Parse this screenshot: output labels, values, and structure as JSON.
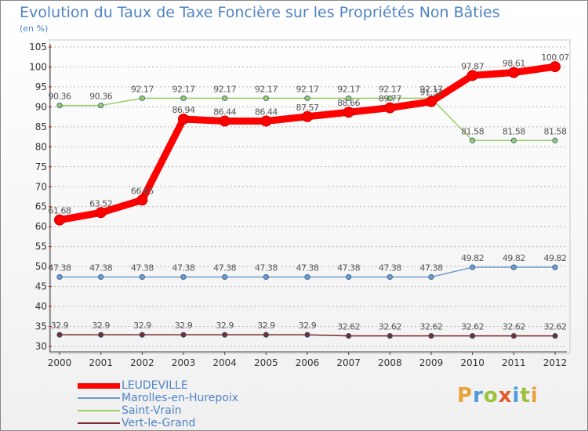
{
  "header": {
    "title": "Evolution du Taux de Taxe Foncière sur les Propriétés Non Bâties",
    "unit": "(en %)"
  },
  "logo": {
    "text": "Proxiti",
    "colors": [
      "#e8a33c",
      "#4f9be0",
      "#9bc23a",
      "#e25c2e",
      "#4f9be0",
      "#9bc23a",
      "#e8a33c"
    ]
  },
  "chart_data": {
    "type": "line",
    "title": "Evolution du Taux de Taxe Foncière sur les Propriétés Non Bâties",
    "ylabel": "(en %)",
    "ylim": [
      30,
      105
    ],
    "yticks": [
      30,
      35,
      40,
      45,
      50,
      55,
      60,
      65,
      70,
      75,
      80,
      85,
      90,
      95,
      100,
      105
    ],
    "x": [
      "2000",
      "2001",
      "2002",
      "2003",
      "2004",
      "2005",
      "2006",
      "2007",
      "2008",
      "2009",
      "2010",
      "2011",
      "2012"
    ],
    "grid": "horizontal dashed",
    "legend_position": "bottom-left",
    "series": [
      {
        "name": "LEUDEVILLE",
        "color": "#ff0000",
        "values": [
          61.68,
          63.52,
          66.65,
          86.94,
          86.44,
          86.44,
          87.57,
          88.66,
          89.77,
          91.32,
          97.87,
          98.61,
          100.07
        ],
        "labels": [
          "61.68",
          "63.52",
          "66.65",
          "86.94",
          "86.44",
          "86.44",
          "87.57",
          "88.66",
          "89.77",
          "91.32",
          "97.87",
          "98.61",
          "100.07"
        ]
      },
      {
        "name": "Marolles-en-Hurepoix",
        "color": "#6f9bcc",
        "values": [
          47.38,
          47.38,
          47.38,
          47.38,
          47.38,
          47.38,
          47.38,
          47.38,
          47.38,
          47.38,
          49.82,
          49.82,
          49.82
        ],
        "labels": [
          "47.38",
          "47.38",
          "47.38",
          "47.38",
          "47.38",
          "47.38",
          "47.38",
          "47.38",
          "47.38",
          "47.38",
          "49.82",
          "49.82",
          "49.82"
        ]
      },
      {
        "name": "Saint-Vrain",
        "color": "#99cc66",
        "values": [
          90.36,
          90.36,
          92.17,
          92.17,
          92.17,
          92.17,
          92.17,
          92.17,
          92.17,
          92.17,
          81.58,
          81.58,
          81.58
        ],
        "labels": [
          "90.36",
          "90.36",
          "92.17",
          "92.17",
          "92.17",
          "92.17",
          "92.17",
          "92.17",
          "92.17",
          "92.17",
          "81.58",
          "81.58",
          "81.58"
        ]
      },
      {
        "name": "Vert-le-Grand",
        "color": "#7a2b2b",
        "values": [
          32.9,
          32.9,
          32.9,
          32.9,
          32.9,
          32.9,
          32.9,
          32.62,
          32.62,
          32.62,
          32.62,
          32.62,
          32.62
        ],
        "labels": [
          "32.9",
          "32.9",
          "32.9",
          "32.9",
          "32.9",
          "32.9",
          "32.9",
          "32.62",
          "32.62",
          "32.62",
          "32.62",
          "32.62",
          "32.62"
        ]
      }
    ]
  }
}
